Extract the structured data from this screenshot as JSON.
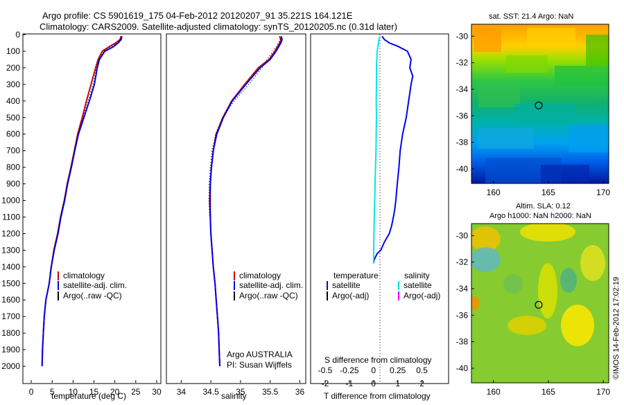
{
  "title_line1": "Argo profile: CS 5901619_175 04-Feb-2012 20120207_91 35.221S 164.121E",
  "title_line2": "Climatology: CARS2009. Satellite-adjusted climatology: synTS_20120205.nc (0.31d later)",
  "colors": {
    "climatology": "#cc0000",
    "satellite": "#0000ee",
    "argo": "#000000",
    "sal_satellite": "#00e5ee",
    "sal_argo": "#ee00ee"
  },
  "chart_data": [
    {
      "type": "line",
      "name": "temperature-profile",
      "xlabel": "temperature (deg C)",
      "ylabel": "",
      "xlim": [
        -2,
        31
      ],
      "ylim": [
        2100,
        0
      ],
      "xticks": [
        0,
        5,
        10,
        15,
        20,
        25,
        30
      ],
      "yticks": [
        0,
        100,
        200,
        300,
        400,
        500,
        600,
        700,
        800,
        900,
        1000,
        1100,
        1200,
        1300,
        1400,
        1500,
        1600,
        1700,
        1800,
        1900,
        2000
      ],
      "legend": [
        "climatology",
        "satellite-adj. clim.",
        "Argo(..raw -QC)"
      ],
      "series": [
        {
          "name": "climatology",
          "x": [
            21.5,
            21.2,
            20.2,
            18.5,
            17.0,
            16.0,
            15.4,
            14.3,
            13.2,
            12.2,
            11.1,
            10.3,
            9.5,
            8.6,
            7.9,
            7.0,
            6.3,
            5.4,
            4.8,
            4.3,
            3.5,
            3.1,
            2.9,
            2.7,
            2.6
          ],
          "y": [
            10,
            30,
            50,
            75,
            100,
            150,
            200,
            300,
            400,
            500,
            600,
            700,
            800,
            900,
            1000,
            1100,
            1200,
            1300,
            1400,
            1500,
            1600,
            1700,
            1800,
            1900,
            2000
          ]
        },
        {
          "name": "satellite-adj. clim.",
          "x": [
            21.7,
            21.5,
            20.8,
            19.5,
            17.6,
            16.3,
            15.8,
            15.1,
            13.9,
            12.6,
            11.3,
            10.4,
            9.6,
            8.7,
            8.0,
            7.1,
            6.4,
            5.5,
            4.8,
            4.3,
            3.5,
            3.1,
            2.9,
            2.7,
            2.6
          ],
          "y": [
            10,
            30,
            50,
            75,
            100,
            150,
            200,
            300,
            400,
            500,
            600,
            700,
            800,
            900,
            1000,
            1100,
            1200,
            1300,
            1400,
            1500,
            1600,
            1700,
            1800,
            1900,
            2000
          ]
        },
        {
          "name": "Argo(..raw -QC)",
          "x": [
            21.6,
            21.3,
            20.6,
            19.0,
            17.4,
            16.2,
            15.6,
            14.8,
            13.6,
            12.4,
            11.2,
            10.4,
            9.6,
            8.7,
            7.9,
            7.0,
            6.3,
            5.5,
            4.9,
            4.4
          ],
          "y": [
            10,
            30,
            50,
            75,
            100,
            150,
            200,
            300,
            400,
            500,
            600,
            700,
            800,
            900,
            1000,
            1100,
            1200,
            1300,
            1380,
            1450
          ]
        }
      ]
    },
    {
      "type": "line",
      "name": "salinity-profile",
      "xlabel": "salinity",
      "xlim": [
        33.75,
        36.1
      ],
      "ylim": [
        2100,
        0
      ],
      "xticks": [
        34,
        34.5,
        35,
        35.5,
        36
      ],
      "legend": [
        "climatology",
        "satellite-adj. clim.",
        "Argo(..raw -QC)"
      ],
      "annotation_line1": "Argo AUSTRALIA",
      "annotation_line2": "PI: Susan Wijffels",
      "series": [
        {
          "name": "climatology",
          "x": [
            35.66,
            35.68,
            35.66,
            35.62,
            35.58,
            35.48,
            35.3,
            35.07,
            34.85,
            34.7,
            34.59,
            34.54,
            34.51,
            34.49,
            34.49,
            34.49,
            34.5,
            34.52,
            34.54,
            34.57,
            34.59,
            34.61,
            34.63,
            34.64,
            34.65
          ],
          "y": [
            10,
            30,
            50,
            75,
            100,
            150,
            200,
            300,
            400,
            500,
            600,
            700,
            800,
            900,
            1000,
            1100,
            1200,
            1300,
            1400,
            1500,
            1600,
            1700,
            1800,
            1900,
            2000
          ]
        },
        {
          "name": "satellite-adj. clim.",
          "x": [
            35.69,
            35.7,
            35.68,
            35.64,
            35.6,
            35.5,
            35.33,
            35.09,
            34.86,
            34.71,
            34.6,
            34.54,
            34.51,
            34.49,
            34.48,
            34.49,
            34.5,
            34.52,
            34.54,
            34.57,
            34.59,
            34.61,
            34.63,
            34.64,
            34.65
          ],
          "y": [
            10,
            30,
            50,
            75,
            100,
            150,
            200,
            300,
            400,
            500,
            600,
            700,
            800,
            900,
            1000,
            1100,
            1200,
            1300,
            1400,
            1500,
            1600,
            1700,
            1800,
            1900,
            2000
          ]
        },
        {
          "name": "Argo(..raw -QC)",
          "x": [
            35.66,
            35.67,
            35.64,
            35.6,
            35.55,
            35.45,
            35.36,
            35.14,
            34.89,
            34.7,
            34.58,
            34.52,
            34.49,
            34.47,
            34.47,
            34.48
          ],
          "y": [
            10,
            30,
            50,
            75,
            100,
            150,
            200,
            300,
            400,
            500,
            600,
            700,
            800,
            900,
            1000,
            1100
          ]
        }
      ]
    },
    {
      "type": "line",
      "name": "difference-profile",
      "xlabel": "T difference from climatology",
      "xlabel_top": "S difference from climatology",
      "xlim": [
        -2.6,
        3.1
      ],
      "ylim": [
        2100,
        0
      ],
      "xticks": [
        -2,
        -1,
        0,
        1,
        2
      ],
      "xtick_labels": [
        "-2",
        "-1",
        "0",
        "1",
        "2"
      ],
      "s_ticks": [
        -0.5,
        -0.25,
        0,
        0.25,
        0.5
      ],
      "s_tick_labels": [
        "-0.5",
        "-0.25",
        "0",
        "0.25",
        "0.5"
      ],
      "legend_temperature_title": "temperature",
      "legend_salinity_title": "salinity",
      "legend_temperature": [
        "satellite",
        "Argo(-adj)"
      ],
      "legend_salinity": [
        "satellite",
        "Argo(-adj)"
      ],
      "series": [
        {
          "name": "T satellite",
          "x": [
            0.35,
            0.45,
            0.65,
            1.0,
            1.4,
            1.55,
            1.5,
            1.62,
            1.55,
            1.45,
            1.35,
            1.2,
            1.1,
            1.05,
            0.98,
            0.92,
            0.88,
            0.82,
            0.75,
            0.65,
            0.45,
            0.3,
            0.15,
            0.08,
            0.02,
            0.0
          ],
          "y": [
            10,
            30,
            50,
            70,
            100,
            150,
            200,
            250,
            300,
            400,
            500,
            600,
            700,
            800,
            900,
            1000,
            1050,
            1100,
            1150,
            1200,
            1250,
            1300,
            1320,
            1340,
            1360,
            1380
          ]
        },
        {
          "name": "S satellite",
          "x": [
            0.25,
            0.2,
            0.15,
            0.12,
            0.12,
            0.11,
            0.12,
            0.11,
            0.1,
            0.08,
            0.06,
            0.05,
            0.03,
            0.01,
            0.0
          ],
          "y": [
            10,
            50,
            100,
            200,
            300,
            400,
            500,
            600,
            700,
            800,
            900,
            1000,
            1100,
            1250,
            1380
          ]
        }
      ]
    },
    {
      "type": "heatmap",
      "name": "sst-map",
      "title": "sat. SST: 21.4 Argo: NaN",
      "xticks": [
        160,
        165,
        170
      ],
      "yticks": [
        -30,
        -32,
        -34,
        -36,
        -38,
        -40
      ],
      "xlim": [
        158,
        170.5
      ],
      "ylim": [
        -41.1,
        -29.1
      ],
      "marker_lon": 164.121,
      "marker_lat": -35.221
    },
    {
      "type": "heatmap",
      "name": "sla-map",
      "title_line1": "Altim. SLA: 0.12",
      "title_line2": "Argo h1000: NaN h2000: NaN",
      "xticks": [
        160,
        165,
        170
      ],
      "yticks": [
        -30,
        -32,
        -34,
        -36,
        -38,
        -40
      ],
      "xlim": [
        158,
        170.5
      ],
      "ylim": [
        -41.1,
        -29.1
      ],
      "marker_lon": 164.121,
      "marker_lat": -35.221
    }
  ],
  "watermark": "©IMOS 14-Feb-2012 17:02:19"
}
